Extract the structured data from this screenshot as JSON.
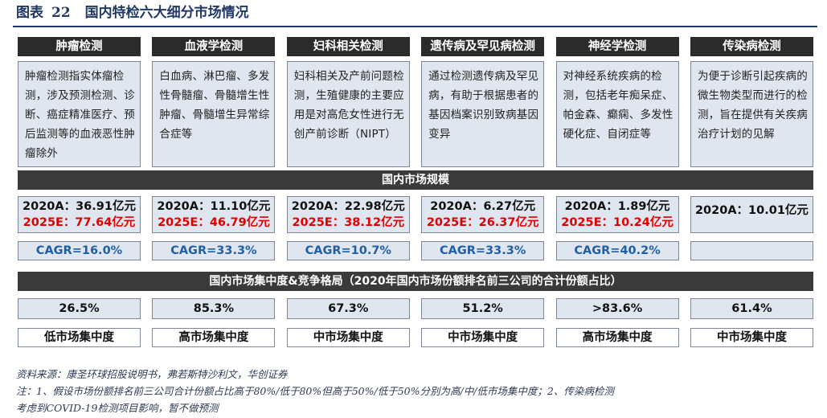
{
  "figure": {
    "label": "图表",
    "number": "22",
    "title": "国内特检六大细分市场情况"
  },
  "categories": [
    {
      "name": "肿瘤检测",
      "description": "肿瘤检测指实体瘤检测，涉及预测检测、诊断、癌症精准医疗、预后监测等的血液恶性肿瘤除外",
      "size_2020": "2020A：36.91亿元",
      "size_2025": "2025E：77.64亿元",
      "cagr": "CAGR=16.0%",
      "concentration": "26.5%",
      "level": "低市场集中度"
    },
    {
      "name": "血液学检测",
      "description": "白血病、淋巴瘤、多发性骨髓瘤、骨髓增生性肿瘤、骨髓增生异常综合症等",
      "size_2020": "2020A：11.10亿元",
      "size_2025": "2025E：46.79亿元",
      "cagr": "CAGR=33.3%",
      "concentration": "85.3%",
      "level": "高市场集中度"
    },
    {
      "name": "妇科相关检测",
      "description": "妇科相关及产前问题检测，生殖健康的主要应用是对高危女性进行无创产前诊断（NIPT）",
      "size_2020": "2020A：22.98亿元",
      "size_2025": "2025E：38.12亿元",
      "cagr": "CAGR=10.7%",
      "concentration": "67.3%",
      "level": "中市场集中度"
    },
    {
      "name": "遗传病及罕见病检测",
      "description": "通过检测遗传病及罕见病，有助于根据患者的基因档案识别致病基因变异",
      "size_2020": "2020A：6.27亿元",
      "size_2025": "2025E：26.37亿元",
      "cagr": "CAGR=33.3%",
      "concentration": "51.2%",
      "level": "中市场集中度"
    },
    {
      "name": "神经学检测",
      "description": "对神经系统疾病的检测，包括老年痴呆症、帕金森、癫痫、多发性硬化症、自闭症等",
      "size_2020": "2020A：1.89亿元",
      "size_2025": "2025E：10.24亿元",
      "cagr": "CAGR=40.2%",
      "concentration": ">83.6%",
      "level": "高市场集中度"
    },
    {
      "name": "传染病检测",
      "description": "为便于诊断引起疾病的微生物类型而进行的检测，旨在提供有关疾病治疗计划的见解",
      "size_2020": "2020A：10.01亿元",
      "size_2025": "",
      "cagr": "",
      "concentration": "61.4%",
      "level": "中市场集中度"
    }
  ],
  "bands": {
    "market_scale": "国内市场规模",
    "concentration": "国内市场集中度&竞争格局（2020年国内市场份额排名前三公司的合计份额占比）"
  },
  "notes": {
    "source": "资料来源：康圣环球招股说明书，弗若斯特沙利文，华创证券",
    "note_line1": "注：1、假设市场份额排名前三公司合计份额占比高于80%/低于80%但高于50%/低于50%分别为高/中/低市场集中度；2、传染病检测",
    "note_line2": "考虑到COVID-19检测项目影响，暂不做预测"
  },
  "colors": {
    "header_bg": "#2b2b2b",
    "cell_bg": "#dfe6ef",
    "estimate_red": "#e00000",
    "cagr_blue": "#1f5fa8",
    "title_navy": "#1f3864"
  }
}
